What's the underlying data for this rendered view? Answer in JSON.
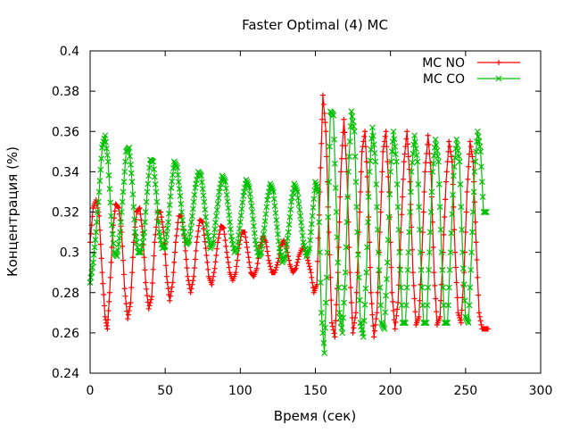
{
  "chart_data": {
    "type": "line",
    "title": "Faster Optimal (4) MC",
    "xlabel": "Время (сек)",
    "ylabel": "Концентрация (%)",
    "xlim": [
      0,
      300
    ],
    "ylim": [
      0.24,
      0.4
    ],
    "xticks": [
      "0",
      "50",
      "100",
      "150",
      "200",
      "250",
      "300"
    ],
    "yticks": [
      "0.24",
      "0.26",
      "0.28",
      "0.3",
      "0.32",
      "0.34",
      "0.36",
      "0.38",
      "0.4"
    ],
    "grid": false,
    "legend": {
      "position": "top-right"
    },
    "series": [
      {
        "name": "MC NO",
        "color": "#ff0000",
        "marker": "plus",
        "x": [
          0,
          2,
          4,
          6,
          8,
          10,
          11.5,
          13,
          15,
          17,
          19,
          21,
          23,
          25,
          27,
          29,
          31,
          33,
          35,
          37,
          39,
          41,
          43,
          45,
          47,
          49,
          51,
          53,
          55,
          57,
          59,
          61,
          63,
          65,
          67,
          69,
          71,
          73,
          75,
          77,
          79,
          81,
          83,
          85,
          87,
          89,
          91,
          93,
          95,
          97,
          99,
          101,
          103,
          105,
          107,
          109,
          111,
          113,
          115,
          117,
          119,
          121,
          123,
          125,
          127,
          129,
          131,
          133,
          135,
          137,
          139,
          141,
          143,
          145,
          147,
          149,
          151,
          153,
          155,
          157,
          159,
          161,
          163,
          165,
          167,
          169,
          171,
          173,
          175,
          177,
          179,
          181,
          183,
          185,
          187,
          189,
          191,
          193,
          195,
          197,
          199,
          201,
          203,
          205,
          207,
          209,
          211,
          213,
          215,
          217,
          219,
          221,
          223,
          225,
          227,
          229,
          231,
          233,
          235,
          237,
          239,
          241,
          243,
          245,
          247,
          249,
          251,
          253,
          255,
          257,
          259,
          261,
          263,
          265
        ],
        "y": [
          0.305,
          0.322,
          0.326,
          0.318,
          0.29,
          0.268,
          0.262,
          0.28,
          0.31,
          0.324,
          0.322,
          0.31,
          0.282,
          0.267,
          0.275,
          0.305,
          0.32,
          0.322,
          0.31,
          0.285,
          0.272,
          0.278,
          0.305,
          0.32,
          0.32,
          0.31,
          0.288,
          0.276,
          0.285,
          0.305,
          0.318,
          0.318,
          0.305,
          0.288,
          0.28,
          0.288,
          0.305,
          0.316,
          0.315,
          0.302,
          0.288,
          0.284,
          0.292,
          0.305,
          0.313,
          0.312,
          0.3,
          0.29,
          0.286,
          0.29,
          0.302,
          0.31,
          0.31,
          0.3,
          0.29,
          0.288,
          0.292,
          0.302,
          0.308,
          0.305,
          0.296,
          0.29,
          0.29,
          0.295,
          0.303,
          0.306,
          0.302,
          0.294,
          0.29,
          0.292,
          0.298,
          0.302,
          0.302,
          0.296,
          0.29,
          0.28,
          0.284,
          0.33,
          0.378,
          0.36,
          0.31,
          0.265,
          0.258,
          0.29,
          0.34,
          0.366,
          0.34,
          0.29,
          0.26,
          0.27,
          0.31,
          0.35,
          0.36,
          0.33,
          0.28,
          0.258,
          0.27,
          0.31,
          0.35,
          0.36,
          0.33,
          0.28,
          0.262,
          0.275,
          0.31,
          0.345,
          0.36,
          0.335,
          0.29,
          0.264,
          0.268,
          0.3,
          0.34,
          0.358,
          0.34,
          0.29,
          0.264,
          0.268,
          0.3,
          0.335,
          0.355,
          0.345,
          0.3,
          0.27,
          0.265,
          0.29,
          0.33,
          0.355,
          0.345,
          0.305,
          0.27,
          0.262,
          0.262,
          0.262
        ]
      },
      {
        "name": "MC CO",
        "color": "#00c000",
        "marker": "cross",
        "x": [
          0,
          2,
          4,
          6,
          8,
          10,
          12,
          14,
          16,
          18,
          20,
          22,
          24,
          26,
          28,
          30,
          32,
          34,
          36,
          38,
          40,
          42,
          44,
          46,
          48,
          50,
          52,
          54,
          56,
          58,
          60,
          62,
          64,
          66,
          68,
          70,
          72,
          74,
          76,
          78,
          80,
          82,
          84,
          86,
          88,
          90,
          92,
          94,
          96,
          98,
          100,
          102,
          104,
          106,
          108,
          110,
          112,
          114,
          116,
          118,
          120,
          122,
          124,
          126,
          128,
          130,
          132,
          134,
          136,
          138,
          140,
          142,
          144,
          146,
          148,
          150,
          152,
          154,
          156,
          158,
          160,
          162,
          164,
          166,
          168,
          170,
          172,
          174,
          176,
          178,
          180,
          182,
          184,
          186,
          188,
          190,
          192,
          194,
          196,
          198,
          200,
          202,
          204,
          206,
          208,
          210,
          212,
          214,
          216,
          218,
          220,
          222,
          224,
          226,
          228,
          230,
          232,
          234,
          236,
          238,
          240,
          242,
          244,
          246,
          248,
          250,
          252,
          254,
          256,
          258,
          260,
          262,
          264
        ],
        "y": [
          0.285,
          0.295,
          0.31,
          0.33,
          0.352,
          0.358,
          0.345,
          0.318,
          0.3,
          0.298,
          0.31,
          0.33,
          0.35,
          0.352,
          0.335,
          0.31,
          0.3,
          0.3,
          0.31,
          0.33,
          0.346,
          0.345,
          0.33,
          0.31,
          0.302,
          0.303,
          0.315,
          0.332,
          0.345,
          0.342,
          0.328,
          0.312,
          0.304,
          0.306,
          0.318,
          0.332,
          0.34,
          0.338,
          0.325,
          0.31,
          0.302,
          0.305,
          0.318,
          0.33,
          0.338,
          0.335,
          0.322,
          0.308,
          0.3,
          0.302,
          0.315,
          0.328,
          0.336,
          0.332,
          0.32,
          0.306,
          0.298,
          0.3,
          0.312,
          0.326,
          0.334,
          0.33,
          0.316,
          0.302,
          0.295,
          0.298,
          0.31,
          0.325,
          0.334,
          0.33,
          0.318,
          0.305,
          0.298,
          0.302,
          0.318,
          0.335,
          0.33,
          0.27,
          0.25,
          0.3,
          0.37,
          0.368,
          0.32,
          0.27,
          0.26,
          0.29,
          0.34,
          0.37,
          0.36,
          0.31,
          0.265,
          0.258,
          0.29,
          0.34,
          0.362,
          0.345,
          0.3,
          0.265,
          0.262,
          0.295,
          0.34,
          0.36,
          0.345,
          0.3,
          0.265,
          0.265,
          0.3,
          0.34,
          0.358,
          0.345,
          0.3,
          0.265,
          0.265,
          0.3,
          0.34,
          0.356,
          0.345,
          0.3,
          0.265,
          0.265,
          0.3,
          0.338,
          0.356,
          0.345,
          0.3,
          0.268,
          0.265,
          0.3,
          0.34,
          0.36,
          0.35,
          0.32,
          0.32
        ]
      }
    ]
  }
}
